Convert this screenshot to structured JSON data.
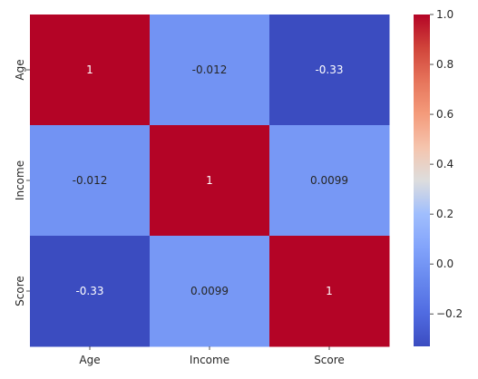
{
  "chart_data": {
    "type": "heatmap",
    "title": "",
    "xlabel": "",
    "ylabel": "",
    "x_categories": [
      "Age",
      "Income",
      "Score"
    ],
    "y_categories": [
      "Age",
      "Income",
      "Score"
    ],
    "values": [
      [
        1,
        -0.012,
        -0.33
      ],
      [
        -0.012,
        1,
        0.0099
      ],
      [
        -0.33,
        0.0099,
        1
      ]
    ],
    "annotations": [
      [
        "1",
        "-0.012",
        "-0.33"
      ],
      [
        "-0.012",
        "1",
        "0.0099"
      ],
      [
        "-0.33",
        "0.0099",
        "1"
      ]
    ],
    "colormap": "coolwarm",
    "color_range": [
      -0.33,
      1.0
    ],
    "colorbar": {
      "ticks": [
        1.0,
        0.8,
        0.6,
        0.4,
        0.2,
        0.0,
        -0.2
      ],
      "tick_labels": [
        "1.0",
        "0.8",
        "0.6",
        "0.4",
        "0.2",
        "0.0",
        "−0.2"
      ]
    },
    "grid": false
  }
}
